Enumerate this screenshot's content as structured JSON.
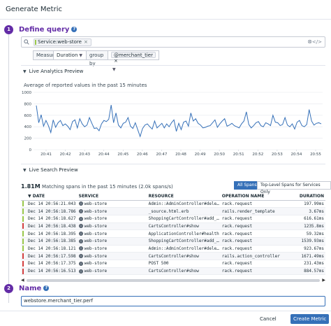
{
  "window": {
    "title": "Generate Metric"
  },
  "sections": {
    "query": {
      "number": "1",
      "title": "Define query",
      "help": "?"
    },
    "name": {
      "number": "2",
      "title": "Name",
      "help": "?"
    }
  },
  "query": {
    "tag": "Service:web-store",
    "tag_remove": "×",
    "clear_icon": "⊗",
    "code_icon": "</>",
    "measure_label": "Measure",
    "measure_value": "Duration",
    "group_by_label": "group by",
    "group_tag": "@merchant_tier",
    "group_tag_remove": "×"
  },
  "analytics": {
    "header": "Live Analytics Preview",
    "caption": "Average of reported values in the past 15 minutes"
  },
  "chart_data": {
    "type": "line",
    "title": "Average of reported values in the past 15 minutes",
    "xlabel": "",
    "ylabel": "",
    "ylim": [
      0,
      1000
    ],
    "yticks": [
      0,
      200,
      400,
      600,
      800,
      1000
    ],
    "xticks": [
      "20:41",
      "20:42",
      "20:43",
      "20:44",
      "20:45",
      "20:46",
      "20:47",
      "20:48",
      "20:49",
      "20:50",
      "20:51",
      "20:52",
      "20:53",
      "20:54",
      "20:55"
    ],
    "grid": true,
    "series": [
      {
        "color": "#3570b8",
        "values": [
          770,
          470,
          610,
          410,
          510,
          420,
          300,
          520,
          390,
          470,
          510,
          420,
          450,
          410,
          350,
          490,
          520,
          380,
          540,
          450,
          400,
          430,
          560,
          460,
          370,
          380,
          330,
          450,
          510,
          490,
          530,
          780,
          470,
          640,
          430,
          380,
          460,
          480,
          560,
          410,
          370,
          470,
          350,
          230,
          370,
          430,
          450,
          400,
          360,
          500,
          380,
          420,
          460,
          380,
          450,
          400,
          470,
          520,
          320,
          460,
          350,
          480,
          500,
          410,
          640,
          500,
          540,
          460,
          430,
          380,
          390,
          410,
          420,
          470,
          520,
          390,
          450,
          500,
          540,
          410,
          430,
          460,
          420,
          400,
          380,
          450,
          500,
          660,
          440,
          380,
          420,
          470,
          490,
          420,
          400,
          470,
          450,
          420,
          600,
          480,
          470,
          420,
          440,
          560,
          430,
          400,
          450,
          360,
          480,
          510,
          420,
          400,
          440,
          700,
          500,
          430,
          460,
          470,
          450
        ]
      }
    ]
  },
  "search_preview": {
    "header": "Live Search Preview",
    "count": "1.81M",
    "matching_text": "Matching spans in the past 15 minutes (2.0k spans/s)",
    "toggle_all": "All Spans",
    "toggle_top": "Top-Level Spans for Services Only",
    "columns": {
      "date": "DATE",
      "service": "SERVICE",
      "resource": "RESOURCE",
      "operation": "OPERATION NAME",
      "duration": "DURATION",
      "sort": "▼"
    },
    "rows": [
      {
        "status": "#99c74a",
        "date": "Dec 14 20:56:21.043",
        "service": "web-store",
        "resource": "Admin::AdminController#dele…",
        "operation": "rack.request",
        "duration": "197.99ms"
      },
      {
        "status": "#99c74a",
        "date": "Dec 14 20:56:18.786",
        "service": "web-store",
        "resource": "_source.html.erb",
        "operation": "rails.render_template",
        "duration": "3.67ms"
      },
      {
        "status": "#99c74a",
        "date": "Dec 14 20:56:18.627",
        "service": "web-store",
        "resource": "ShoppingCartController#add_…",
        "operation": "rack.request",
        "duration": "616.61ms"
      },
      {
        "status": "#d33f3f",
        "date": "Dec 14 20:56:18.438",
        "service": "web-store",
        "resource": "CartsController#show",
        "operation": "rack.request",
        "duration": "1235.8ms"
      },
      {
        "status": "#99c74a",
        "date": "Dec 14 20:56:18.395",
        "service": "web-store",
        "resource": "ApplicationController#health",
        "operation": "rack.request",
        "duration": "59.32ms"
      },
      {
        "status": "#99c74a",
        "date": "Dec 14 20:56:18.385",
        "service": "web-store",
        "resource": "ShoppingCartController#add_…",
        "operation": "rack.request",
        "duration": "1539.93ms"
      },
      {
        "status": "#99c74a",
        "date": "Dec 14 20:56:18.121",
        "service": "web-store",
        "resource": "Admin::AdminController#dele…",
        "operation": "rack.request",
        "duration": "923.67ms"
      },
      {
        "status": "#d33f3f",
        "date": "Dec 14 20:56:17.598",
        "service": "web-store",
        "resource": "CartsController#show",
        "operation": "rails.action_controller",
        "duration": "1671.49ms"
      },
      {
        "status": "#d33f3f",
        "date": "Dec 14 20:56:17.375",
        "service": "web-store",
        "resource": "POST 500",
        "operation": "rack.request",
        "duration": "231.43ms"
      },
      {
        "status": "#d33f3f",
        "date": "Dec 14 20:56:16.513",
        "service": "web-store",
        "resource": "CartsController#show",
        "operation": "rack.request",
        "duration": "884.57ms"
      }
    ]
  },
  "name": {
    "value": "webstore.merchant_tier.perf"
  },
  "footer": {
    "cancel": "Cancel",
    "create": "Create Metric"
  },
  "icons": {
    "chevron": "chevron-down-icon",
    "search": "search-icon",
    "service": "service-icon"
  }
}
